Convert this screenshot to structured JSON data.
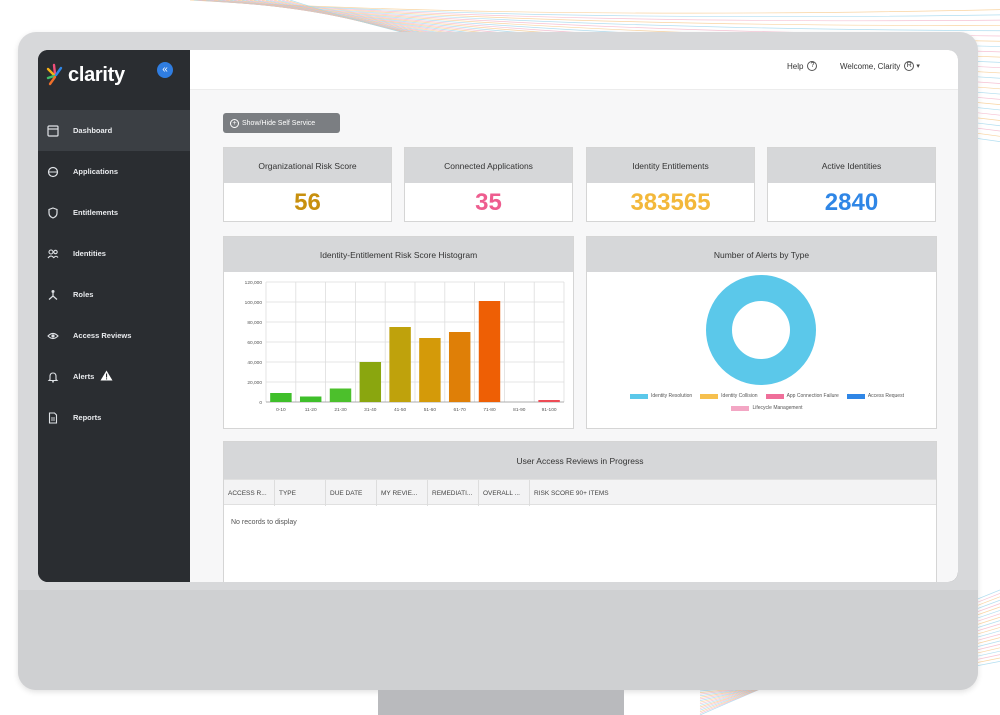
{
  "app": {
    "name": "clarity"
  },
  "header": {
    "help_label": "Help",
    "help_icon": "?",
    "welcome_label": "Welcome, Clarity",
    "user_icon": "R"
  },
  "sidebar": {
    "collapse_icon": "«",
    "items": [
      {
        "label": "Dashboard",
        "icon": "dashboard-icon",
        "active": true
      },
      {
        "label": "Applications",
        "icon": "applications-icon"
      },
      {
        "label": "Entitlements",
        "icon": "shield-icon"
      },
      {
        "label": "Identities",
        "icon": "identities-icon"
      },
      {
        "label": "Roles",
        "icon": "roles-icon"
      },
      {
        "label": "Access Reviews",
        "icon": "eye-icon"
      },
      {
        "label": "Alerts",
        "icon": "bell-icon",
        "badge": "warning-icon"
      },
      {
        "label": "Reports",
        "icon": "document-icon"
      }
    ]
  },
  "toolbar": {
    "self_service_label": "Show/Hide Self Service",
    "self_service_icon": "+"
  },
  "cards": [
    {
      "title": "Organizational Risk Score",
      "value": "56",
      "color": "#c8900e"
    },
    {
      "title": "Connected Applications",
      "value": "35",
      "color": "#ee5d8f"
    },
    {
      "title": "Identity Entitlements",
      "value": "383565",
      "color": "#f3b83a"
    },
    {
      "title": "Active Identities",
      "value": "2840",
      "color": "#2f86e6"
    }
  ],
  "histogram_title": "Identity-Entitlement Risk Score Histogram",
  "alerts_title": "Number of Alerts by Type",
  "chart_data": [
    {
      "type": "bar",
      "title": "Identity-Entitlement Risk Score Histogram",
      "categories": [
        "0-10",
        "11-20",
        "21-30",
        "31-40",
        "41-50",
        "51-60",
        "61-70",
        "71-80",
        "81-90",
        "91-100"
      ],
      "values": [
        9000,
        5500,
        13500,
        40000,
        75000,
        64000,
        70000,
        101000,
        0,
        2000
      ],
      "colors": [
        "#3fbf2a",
        "#3fbf2a",
        "#4cc02c",
        "#8aa60f",
        "#bfa20c",
        "#d49a09",
        "#df7f07",
        "#ee5f05",
        "#ee5f05",
        "#ee4b55"
      ],
      "yticks": [
        "0",
        "20,000",
        "40,000",
        "60,000",
        "80,000",
        "100,000",
        "120,000"
      ],
      "ylim": [
        0,
        120000
      ],
      "grid": true
    },
    {
      "type": "pie",
      "title": "Number of Alerts by Type",
      "donut": true,
      "series": [
        {
          "name": "Identity Resolution",
          "value": 100,
          "color": "#5bc8ea"
        },
        {
          "name": "Identity Collision",
          "value": 0,
          "color": "#f6c04e"
        },
        {
          "name": "App Connection Failure",
          "value": 0,
          "color": "#ef6f9a"
        },
        {
          "name": "Access Request",
          "value": 0,
          "color": "#2f86e6"
        },
        {
          "name": "Lifecycle Management",
          "value": 0,
          "color": "#f3a6c4"
        }
      ],
      "legend": "bottom"
    }
  ],
  "reviews": {
    "title": "User Access Reviews in Progress",
    "columns": [
      "ACCESS R...",
      "TYPE",
      "DUE DATE",
      "MY REVIE...",
      "REMEDIATI...",
      "OVERALL ...",
      "RISK SCORE 90+ ITEMS"
    ],
    "empty_text": "No records to display"
  }
}
